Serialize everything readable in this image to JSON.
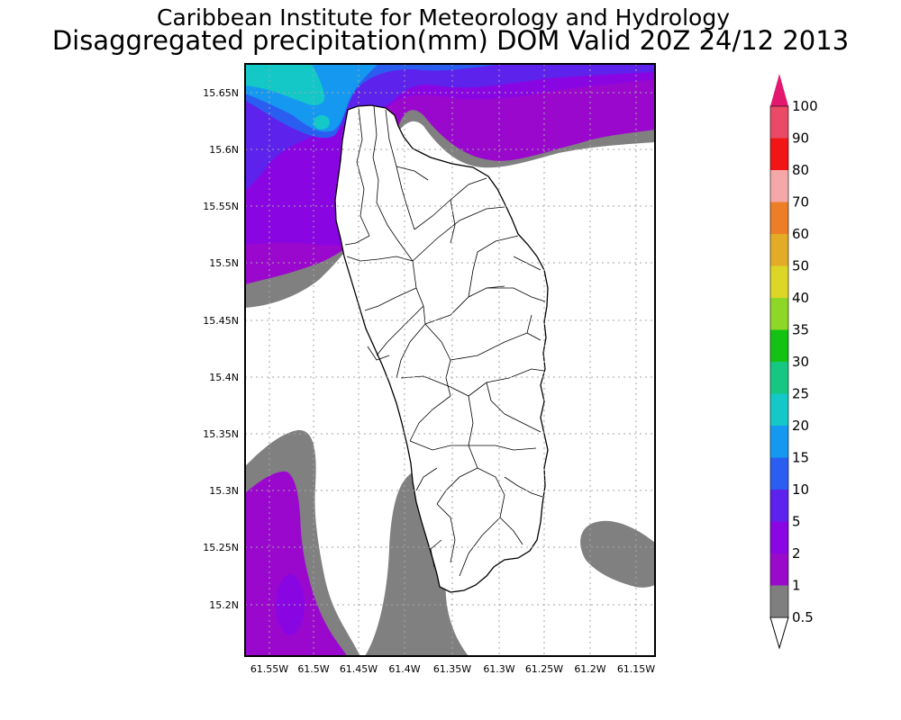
{
  "header": {
    "line1": "Caribbean Institute for Meteorology and Hydrology",
    "line2": "Disaggregated precipitation(mm) DOM Valid 20Z 24/12 2013"
  },
  "map": {
    "lat_ticks": [
      "15.65N",
      "15.6N",
      "15.55N",
      "15.5N",
      "15.45N",
      "15.4N",
      "15.35N",
      "15.3N",
      "15.25N",
      "15.2N"
    ],
    "lon_ticks": [
      "61.55W",
      "61.5W",
      "61.45W",
      "61.4W",
      "61.35W",
      "61.3W",
      "61.25W",
      "61.2W",
      "61.15W"
    ],
    "grid": true
  },
  "colorbar": {
    "levels": [
      "0.5",
      "1",
      "2",
      "5",
      "10",
      "15",
      "20",
      "25",
      "30",
      "35",
      "40",
      "50",
      "60",
      "70",
      "80",
      "90",
      "100"
    ],
    "colors": [
      "#ffffff",
      "#7f7f7f",
      "#9a0aca",
      "#8a06e2",
      "#5d22ec",
      "#2a5ef0",
      "#1599f0",
      "#14c8c8",
      "#14c884",
      "#14c214",
      "#8ed726",
      "#dcd626",
      "#e2ac26",
      "#ed7e27",
      "#f5a8a8",
      "#f21515",
      "#ea4a65",
      "#e2186f"
    ]
  }
}
